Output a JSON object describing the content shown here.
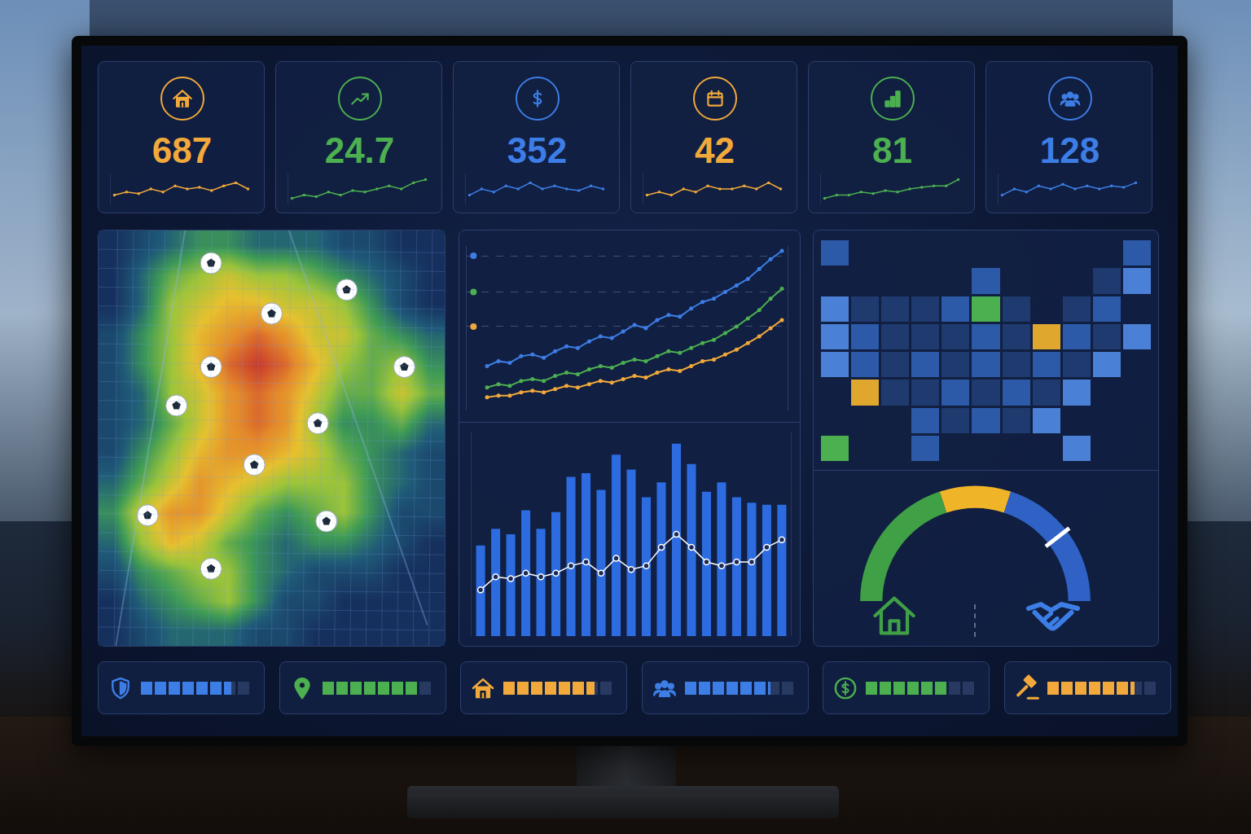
{
  "kpis": [
    {
      "value": 687,
      "color": "#f2a93b",
      "type": "line",
      "ylim": [
        0,
        10
      ],
      "values": [
        3,
        4,
        3.5,
        5,
        4,
        6,
        5,
        5.5,
        4.5,
        6,
        7,
        5
      ]
    },
    {
      "value": 24.7,
      "color": "#4cb050",
      "type": "line",
      "ylim": [
        0,
        10
      ],
      "values": [
        2,
        3,
        2.5,
        4,
        3,
        4.5,
        4,
        5,
        6,
        5,
        7,
        8
      ]
    },
    {
      "value": 352,
      "color": "#3d7ee6",
      "type": "line",
      "ylim": [
        0,
        10
      ],
      "values": [
        3,
        5,
        4,
        6,
        5,
        7,
        5,
        6,
        5,
        4.5,
        6,
        5
      ]
    },
    {
      "value": 42,
      "color": "#f2a93b",
      "type": "line",
      "ylim": [
        0,
        10
      ],
      "values": [
        3,
        4,
        3,
        5,
        4,
        6,
        5,
        5,
        6,
        5,
        7,
        5
      ]
    },
    {
      "value": 81,
      "color": "#4cb050",
      "type": "line",
      "ylim": [
        0,
        10
      ],
      "values": [
        2,
        3,
        3,
        4,
        3.5,
        4.5,
        4,
        5,
        5.5,
        6,
        6,
        8
      ]
    },
    {
      "value": 128,
      "color": "#3d7ee6",
      "type": "line",
      "ylim": [
        0,
        10
      ],
      "values": [
        3,
        5,
        4,
        6,
        5,
        6.5,
        5,
        6,
        5,
        6,
        5.5,
        7
      ]
    }
  ],
  "chart_data": [
    {
      "type": "heatmap",
      "tick_labels": false,
      "zlim": [
        0,
        10
      ],
      "colors": [
        "#16305e",
        "#1f5a78",
        "#3f9b55",
        "#9cc43a",
        "#e6c12f",
        "#e58a2a",
        "#c9392b"
      ],
      "z": [
        [
          0,
          1,
          2,
          3,
          3,
          2,
          2,
          2,
          1,
          1,
          0,
          0
        ],
        [
          0,
          2,
          4,
          5,
          6,
          5,
          5,
          4,
          3,
          2,
          1,
          0
        ],
        [
          0,
          2,
          5,
          6,
          7,
          7,
          6,
          6,
          5,
          3,
          1,
          0
        ],
        [
          1,
          3,
          5,
          7,
          8,
          9,
          8,
          6,
          6,
          4,
          3,
          2
        ],
        [
          1,
          3,
          5,
          7,
          9,
          10,
          9,
          7,
          5,
          4,
          5,
          3
        ],
        [
          1,
          2,
          5,
          6,
          8,
          9,
          8,
          6,
          4,
          4,
          6,
          4
        ],
        [
          1,
          2,
          4,
          6,
          8,
          9,
          8,
          5,
          3,
          3,
          4,
          2
        ],
        [
          1,
          3,
          5,
          7,
          8,
          8,
          7,
          6,
          4,
          3,
          2,
          1
        ],
        [
          2,
          4,
          6,
          8,
          7,
          6,
          5,
          5,
          5,
          3,
          2,
          1
        ],
        [
          3,
          6,
          8,
          8,
          6,
          4,
          3,
          4,
          5,
          3,
          1,
          1
        ],
        [
          2,
          5,
          7,
          6,
          4,
          3,
          2,
          3,
          3,
          2,
          1,
          0
        ],
        [
          1,
          3,
          4,
          5,
          5,
          3,
          2,
          1,
          1,
          1,
          0,
          0
        ],
        [
          0,
          2,
          3,
          4,
          5,
          3,
          1,
          1,
          0,
          0,
          0,
          0
        ],
        [
          0,
          1,
          2,
          2,
          2,
          1,
          1,
          0,
          0,
          0,
          0,
          0
        ]
      ],
      "pins": {
        "x": [
          3.4,
          8.1,
          5.5,
          3.4,
          2.2,
          10.1,
          7.1,
          4.9,
          1.2,
          7.4,
          3.4
        ],
        "y": [
          0.6,
          1.5,
          2.3,
          4.1,
          5.4,
          4.1,
          6.0,
          7.4,
          9.1,
          9.3,
          10.9
        ]
      }
    },
    {
      "type": "line",
      "ylim": [
        0,
        100
      ],
      "yticks": [
        51,
        72,
        94
      ],
      "grid": true,
      "tick_labels": false,
      "marker": "circle",
      "series": [
        {
          "color": "#3d7ee6",
          "values": [
            27,
            30,
            29,
            33,
            34,
            32,
            36,
            39,
            38,
            42,
            45,
            44,
            48,
            52,
            50,
            55,
            58,
            57,
            62,
            66,
            68,
            72,
            76,
            80,
            86,
            92,
            97
          ]
        },
        {
          "color": "#4cb050",
          "values": [
            14,
            16,
            15,
            18,
            19,
            18,
            21,
            23,
            22,
            25,
            27,
            26,
            29,
            31,
            30,
            33,
            36,
            35,
            38,
            41,
            43,
            47,
            51,
            56,
            61,
            68,
            74
          ]
        },
        {
          "color": "#f2a93b",
          "values": [
            8,
            9,
            9,
            11,
            12,
            11,
            13,
            15,
            14,
            16,
            18,
            17,
            19,
            21,
            20,
            23,
            25,
            24,
            27,
            30,
            31,
            34,
            37,
            41,
            45,
            50,
            55
          ]
        }
      ]
    },
    {
      "type": "bar",
      "ylim": [
        0,
        110
      ],
      "tick_labels": false,
      "series": [
        {
          "type": "bar",
          "color": "#2d6be0",
          "values": [
            49,
            58,
            55,
            68,
            58,
            67,
            86,
            88,
            79,
            98,
            90,
            75,
            83,
            104,
            93,
            78,
            83,
            75,
            72,
            71,
            71
          ]
        },
        {
          "type": "line",
          "color": "#ffffff",
          "marker": "circle",
          "values": [
            25,
            32,
            31,
            34,
            32,
            34,
            38,
            40,
            34,
            42,
            36,
            38,
            48,
            55,
            48,
            40,
            38,
            40,
            40,
            48,
            52
          ]
        }
      ]
    },
    {
      "type": "tile_map",
      "tick_labels": false,
      "zlim": [
        1,
        5
      ],
      "colors": [
        "#1e3a6e",
        "#2c5aa8",
        "#4a80d6",
        "#e0a72e",
        "#4caf50"
      ],
      "cells": [
        [
          2,
          null,
          null,
          null,
          null,
          null,
          null,
          null,
          null,
          null,
          2
        ],
        [
          null,
          null,
          null,
          null,
          null,
          2,
          null,
          null,
          null,
          1,
          3
        ],
        [
          3,
          1,
          1,
          1,
          2,
          5,
          1,
          null,
          1,
          2,
          null
        ],
        [
          3,
          2,
          1,
          1,
          1,
          2,
          1,
          4,
          2,
          1,
          3
        ],
        [
          3,
          2,
          1,
          2,
          1,
          2,
          1,
          2,
          1,
          3,
          null
        ],
        [
          null,
          4,
          1,
          1,
          2,
          1,
          2,
          1,
          3,
          null,
          null
        ],
        [
          null,
          null,
          null,
          2,
          1,
          2,
          1,
          3,
          null,
          null,
          null
        ],
        [
          5,
          null,
          null,
          2,
          null,
          null,
          null,
          null,
          3,
          null,
          null
        ]
      ]
    },
    {
      "type": "gauge",
      "tick_labels": false,
      "value": 79,
      "gauge_range": [
        0,
        100
      ],
      "steps": [
        {
          "range": [
            0,
            40
          ],
          "color": "#3fa045"
        },
        {
          "range": [
            40,
            60
          ],
          "color": "#f0b429"
        },
        {
          "range": [
            60,
            100
          ],
          "color": "#2f62c4"
        }
      ]
    }
  ],
  "progress": {
    "xlim": [
      0,
      100
    ],
    "bars": [
      {
        "value": 82,
        "color": "#3d7ee6"
      },
      {
        "value": 87,
        "color": "#4cb050"
      },
      {
        "value": 83,
        "color": "#f2a93b"
      },
      {
        "value": 78,
        "color": "#3d7ee6"
      },
      {
        "value": 75,
        "color": "#4cb050"
      },
      {
        "value": 79,
        "color": "#f2a93b"
      }
    ]
  }
}
